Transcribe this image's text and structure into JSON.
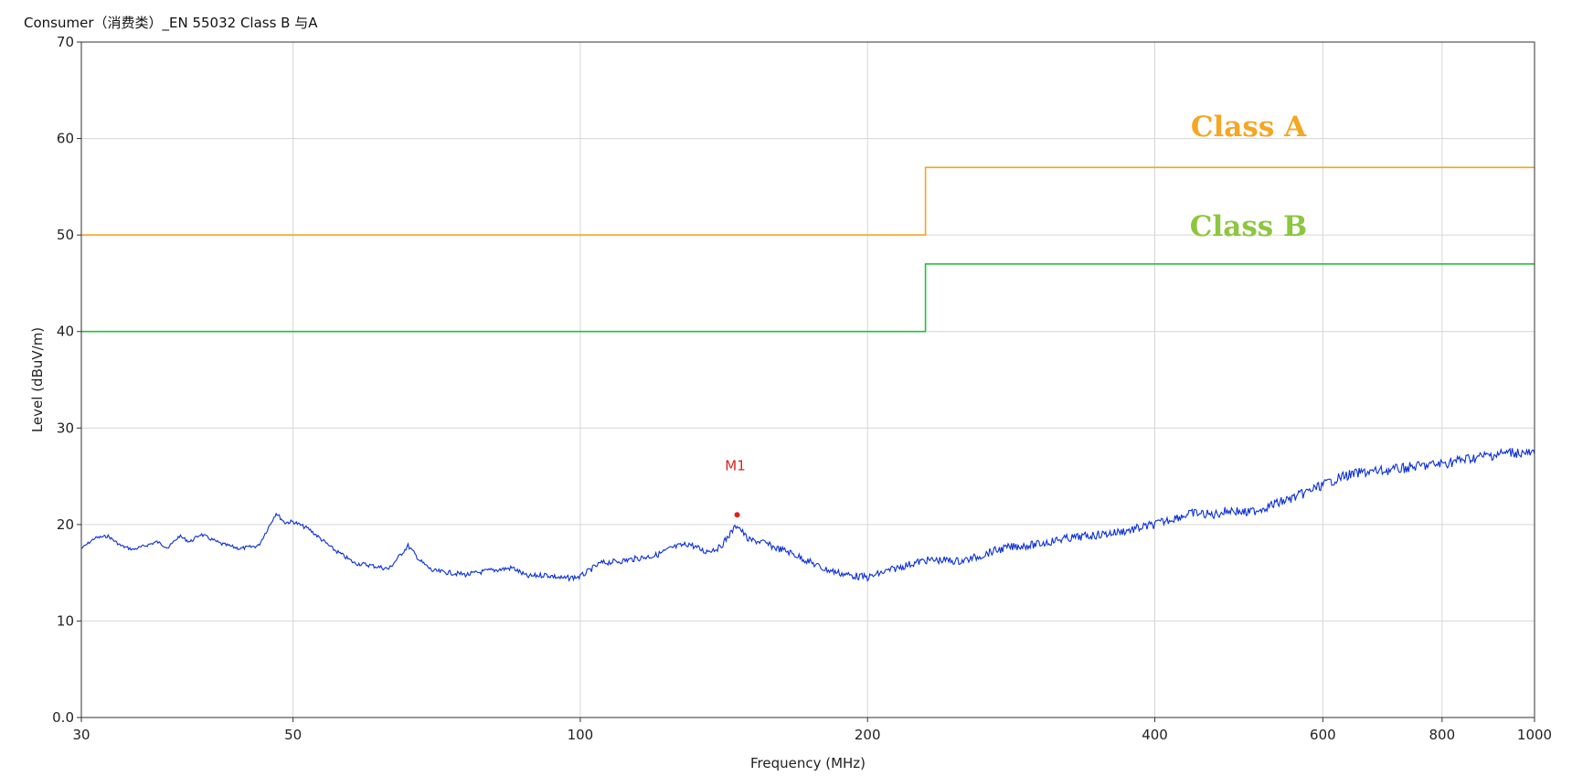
{
  "title": "Consumer（消费类）_EN 55032 Class B 与A",
  "chart_data": {
    "type": "line",
    "title": "Consumer（消费类）_EN 55032 Class B 与A",
    "xlabel": "Frequency (MHz)",
    "ylabel": "Level (dBuV/m)",
    "xscale": "log",
    "xlim": [
      30,
      1000
    ],
    "ylim": [
      0,
      70
    ],
    "xticks": [
      30,
      50,
      100,
      200,
      400,
      600,
      800,
      1000
    ],
    "xtick_labels": [
      "30",
      "50",
      "100",
      "200",
      "400",
      "600",
      "800",
      "1000"
    ],
    "yticks": [
      0,
      10,
      20,
      30,
      40,
      50,
      60,
      70
    ],
    "ytick_labels": [
      "0.0",
      "10",
      "20",
      "30",
      "40",
      "50",
      "60",
      "70"
    ],
    "grid": true,
    "legend": "none",
    "series": [
      {
        "name": "Class A",
        "color": "#F5A623",
        "x": [
          30,
          230,
          230,
          1000
        ],
        "y": [
          50,
          50,
          57,
          57
        ]
      },
      {
        "name": "Class B",
        "color": "#22C13A",
        "x": [
          30,
          230,
          230,
          1000
        ],
        "y": [
          40,
          40,
          47,
          47
        ]
      },
      {
        "color": "#0A2FD6",
        "x": [
          30,
          31,
          32,
          33,
          34,
          35,
          36,
          37,
          38,
          39,
          40,
          42,
          44,
          46,
          47,
          48,
          49,
          50,
          52,
          55,
          58,
          60,
          63,
          66,
          68,
          70,
          73,
          76,
          80,
          85,
          88,
          92,
          96,
          100,
          105,
          110,
          115,
          120,
          125,
          130,
          135,
          140,
          144,
          146,
          150,
          155,
          160,
          165,
          170,
          175,
          180,
          190,
          200,
          210,
          220,
          230,
          240,
          250,
          260,
          270,
          280,
          290,
          300,
          320,
          340,
          360,
          380,
          400,
          420,
          440,
          460,
          480,
          500,
          530,
          560,
          600,
          630,
          660,
          700,
          750,
          800,
          850,
          900,
          950,
          1000
        ],
        "y": [
          17.5,
          18.6,
          18.8,
          17.8,
          17.4,
          17.8,
          18.2,
          17.6,
          18.8,
          18.2,
          19.0,
          18.0,
          17.5,
          17.8,
          19.5,
          21.2,
          20.2,
          20.3,
          19.5,
          17.5,
          16.0,
          15.8,
          15.4,
          17.8,
          16.2,
          15.2,
          15.0,
          14.8,
          15.2,
          15.5,
          14.6,
          14.8,
          14.4,
          14.6,
          16.0,
          16.2,
          16.5,
          16.8,
          17.6,
          18.0,
          17.2,
          17.6,
          19.2,
          20.0,
          18.4,
          18.2,
          17.6,
          17.2,
          16.6,
          16.0,
          15.4,
          14.8,
          14.5,
          15.2,
          15.8,
          16.3,
          16.3,
          16.2,
          16.6,
          17.2,
          17.6,
          17.8,
          17.9,
          18.5,
          18.8,
          19.1,
          19.5,
          20.0,
          20.7,
          21.2,
          21.0,
          21.5,
          21.2,
          22.0,
          22.8,
          24.1,
          25.0,
          25.4,
          25.6,
          26.0,
          26.3,
          26.8,
          27.2,
          27.5,
          27.3
        ]
      }
    ],
    "annotations": [
      {
        "label": "M1",
        "x": 146,
        "y": 21.0,
        "color": "#E02020"
      },
      {
        "label": "Class A",
        "color": "#F5A623"
      },
      {
        "label": "Class B",
        "color": "#8DC63F"
      }
    ]
  }
}
